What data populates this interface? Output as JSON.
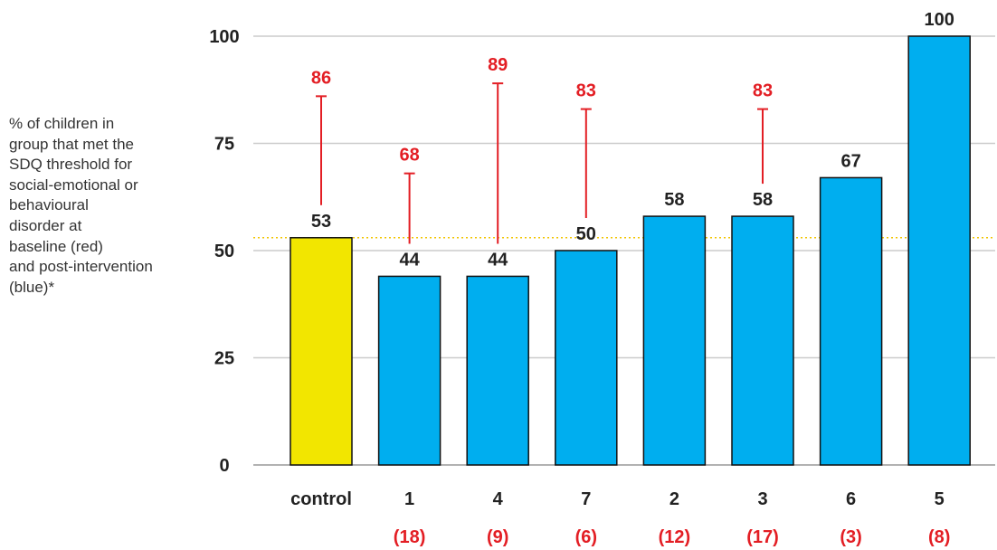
{
  "ylabel_lines": [
    "% of children in",
    "group that met the",
    "SDQ threshold for",
    "social-emotional or",
    "behavioural",
    "disorder at",
    "baseline (red)",
    "and post-intervention",
    "(blue)*"
  ],
  "colors": {
    "control_bar": "#f2e600",
    "intervention_bar": "#00aeef",
    "baseline": "#e31e24",
    "reference_line": "#f2c500",
    "grid": "#cccccc",
    "bar_outline": "#111111"
  },
  "chart_data": {
    "type": "bar",
    "categories": [
      "control",
      "1",
      "4",
      "7",
      "2",
      "3",
      "6",
      "5"
    ],
    "sample_sizes": [
      "(18)",
      "(9)",
      "(6)",
      "(12)",
      "(17)",
      "(3)",
      "(8)"
    ],
    "series": [
      {
        "name": "post-intervention",
        "values": [
          53,
          44,
          44,
          50,
          58,
          58,
          67,
          100
        ]
      },
      {
        "name": "baseline",
        "values": [
          86,
          68,
          89,
          83,
          null,
          83,
          null,
          null
        ]
      }
    ],
    "yticks": [
      0,
      25,
      50,
      75,
      100
    ],
    "ylim": [
      0,
      100
    ],
    "reference_line": 53,
    "grid": true
  }
}
